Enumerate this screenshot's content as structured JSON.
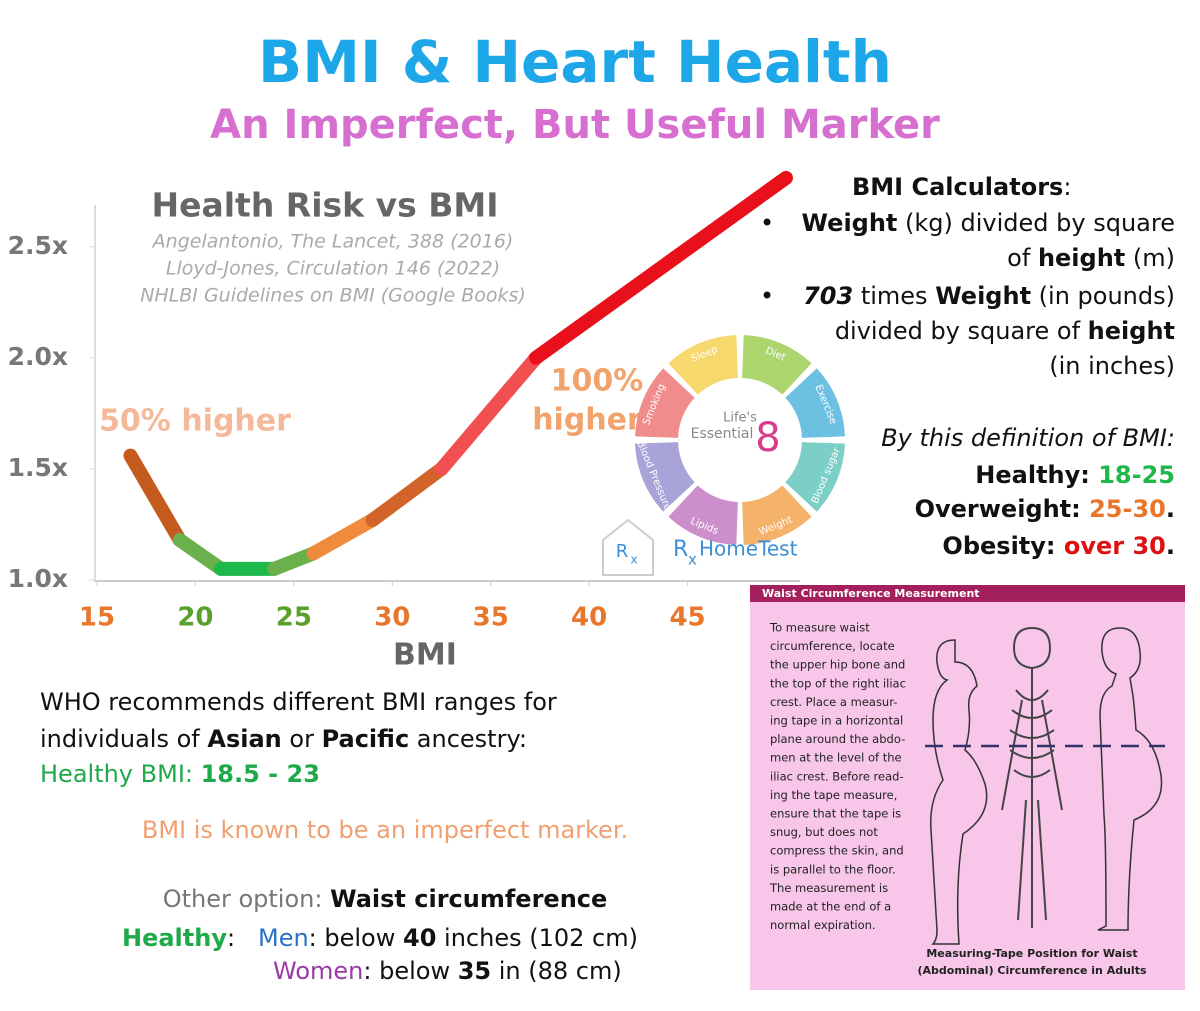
{
  "header": {
    "title": "BMI & Heart Health",
    "subtitle": "An Imperfect, But Useful Marker"
  },
  "chart_data": {
    "type": "line",
    "title": "Health Risk vs BMI",
    "sources": [
      "Angelantonio, The Lancet, 388 (2016)",
      "Lloyd-Jones, Circulation 146 (2022)",
      "NHLBI Guidelines on BMI (Google Books)"
    ],
    "x_label": "BMI",
    "xlim": [
      15,
      50
    ],
    "xticks": [
      15,
      20,
      25,
      30,
      35,
      40,
      45
    ],
    "xtick_colors": [
      "#e8762c",
      "#5aa02c",
      "#5aa02c",
      "#e8762c",
      "#e8762c",
      "#e8762c",
      "#e8762c"
    ],
    "ylim": [
      1.0,
      2.85
    ],
    "yticks": [
      {
        "value": 1.0,
        "label": "1.0x"
      },
      {
        "value": 1.5,
        "label": "1.5x"
      },
      {
        "value": 2.0,
        "label": "2.0x"
      },
      {
        "value": 2.5,
        "label": "2.5x"
      }
    ],
    "series": [
      {
        "color": "#c45a1e",
        "x": [
          16.7,
          19.2
        ],
        "values": [
          1.56,
          1.18
        ]
      },
      {
        "color": "#6ab04c",
        "x": [
          19.2,
          21.3
        ],
        "values": [
          1.18,
          1.05
        ]
      },
      {
        "color": "#1fb84a",
        "x": [
          21.3,
          24.0
        ],
        "values": [
          1.05,
          1.05
        ]
      },
      {
        "color": "#6ab04c",
        "x": [
          24.0,
          26.0
        ],
        "values": [
          1.05,
          1.12
        ]
      },
      {
        "color": "#f08a3c",
        "x": [
          26.0,
          29.0
        ],
        "values": [
          1.12,
          1.27
        ]
      },
      {
        "color": "#d2642a",
        "x": [
          29.0,
          32.5
        ],
        "values": [
          1.27,
          1.5
        ]
      },
      {
        "color": "#f25050",
        "x": [
          32.5,
          37.3
        ],
        "values": [
          1.5,
          2.0
        ]
      },
      {
        "color": "#e8101a",
        "x": [
          37.3,
          50.0
        ],
        "values": [
          2.0,
          2.81
        ]
      }
    ],
    "annotations": [
      "50% higher",
      "100%",
      "higher"
    ]
  },
  "logo": {
    "segments": [
      "Sleep",
      "Diet",
      "Exercise",
      "Blood sugar",
      "Weight",
      "Lipids",
      "Blood Pressure",
      "Smoking"
    ],
    "center": [
      "Life's",
      "Essential",
      "8"
    ],
    "box": [
      "R",
      "x"
    ],
    "brand": [
      "R",
      "x",
      "HomeTest"
    ]
  },
  "calculators": {
    "heading": [
      "BMI Calculators",
      ":"
    ],
    "items": [
      [
        [
          "Weight",
          " (kg) divided by square"
        ],
        [
          "of ",
          "height",
          " (m)"
        ]
      ],
      [
        [
          "703",
          " times ",
          "Weight",
          " (in pounds)"
        ],
        [
          "divided by square of ",
          "height"
        ],
        [
          "(in inches)"
        ]
      ]
    ]
  },
  "definition": {
    "intro": "By this definition of BMI:",
    "healthy": [
      "Healthy: ",
      "18-25"
    ],
    "overweight": [
      "Overweight: ",
      "25-30",
      "."
    ],
    "obesity": [
      "Obesity: ",
      "over 30",
      "."
    ]
  },
  "who": {
    "line1": "WHO recommends different BMI ranges for",
    "line2": [
      "individuals of ",
      "Asian",
      " or ",
      "Pacific",
      " ancestry:"
    ],
    "line3": [
      "Healthy BMI: ",
      "18.5 - 23"
    ]
  },
  "imperfect": "BMI is known to be an imperfect marker.",
  "waist": {
    "option": [
      "Other option: ",
      "Waist circumference"
    ],
    "men": [
      "Healthy",
      ":",
      "Men",
      ": below ",
      "40",
      " inches (102 cm)"
    ],
    "women": [
      "Women",
      ": below ",
      "35",
      " in (88 cm)"
    ]
  },
  "figure": {
    "header": "Waist Circumference Measurement",
    "text": [
      "To measure waist",
      "circumference, locate",
      "the upper hip bone and",
      "the top of the right iliac",
      "crest. Place a measur-",
      "ing tape in a horizontal",
      "plane around the abdo-",
      "men at the level of the",
      "iliac crest. Before read-",
      "ing the tape measure,",
      "ensure that the tape is",
      "snug, but does not",
      "compress the skin, and",
      "is parallel to the floor.",
      "The measurement is",
      "made at the end of a",
      "normal expiration."
    ],
    "caption": [
      "Measuring-Tape Position for Waist",
      "(Abdominal) Circumference in Adults"
    ]
  }
}
